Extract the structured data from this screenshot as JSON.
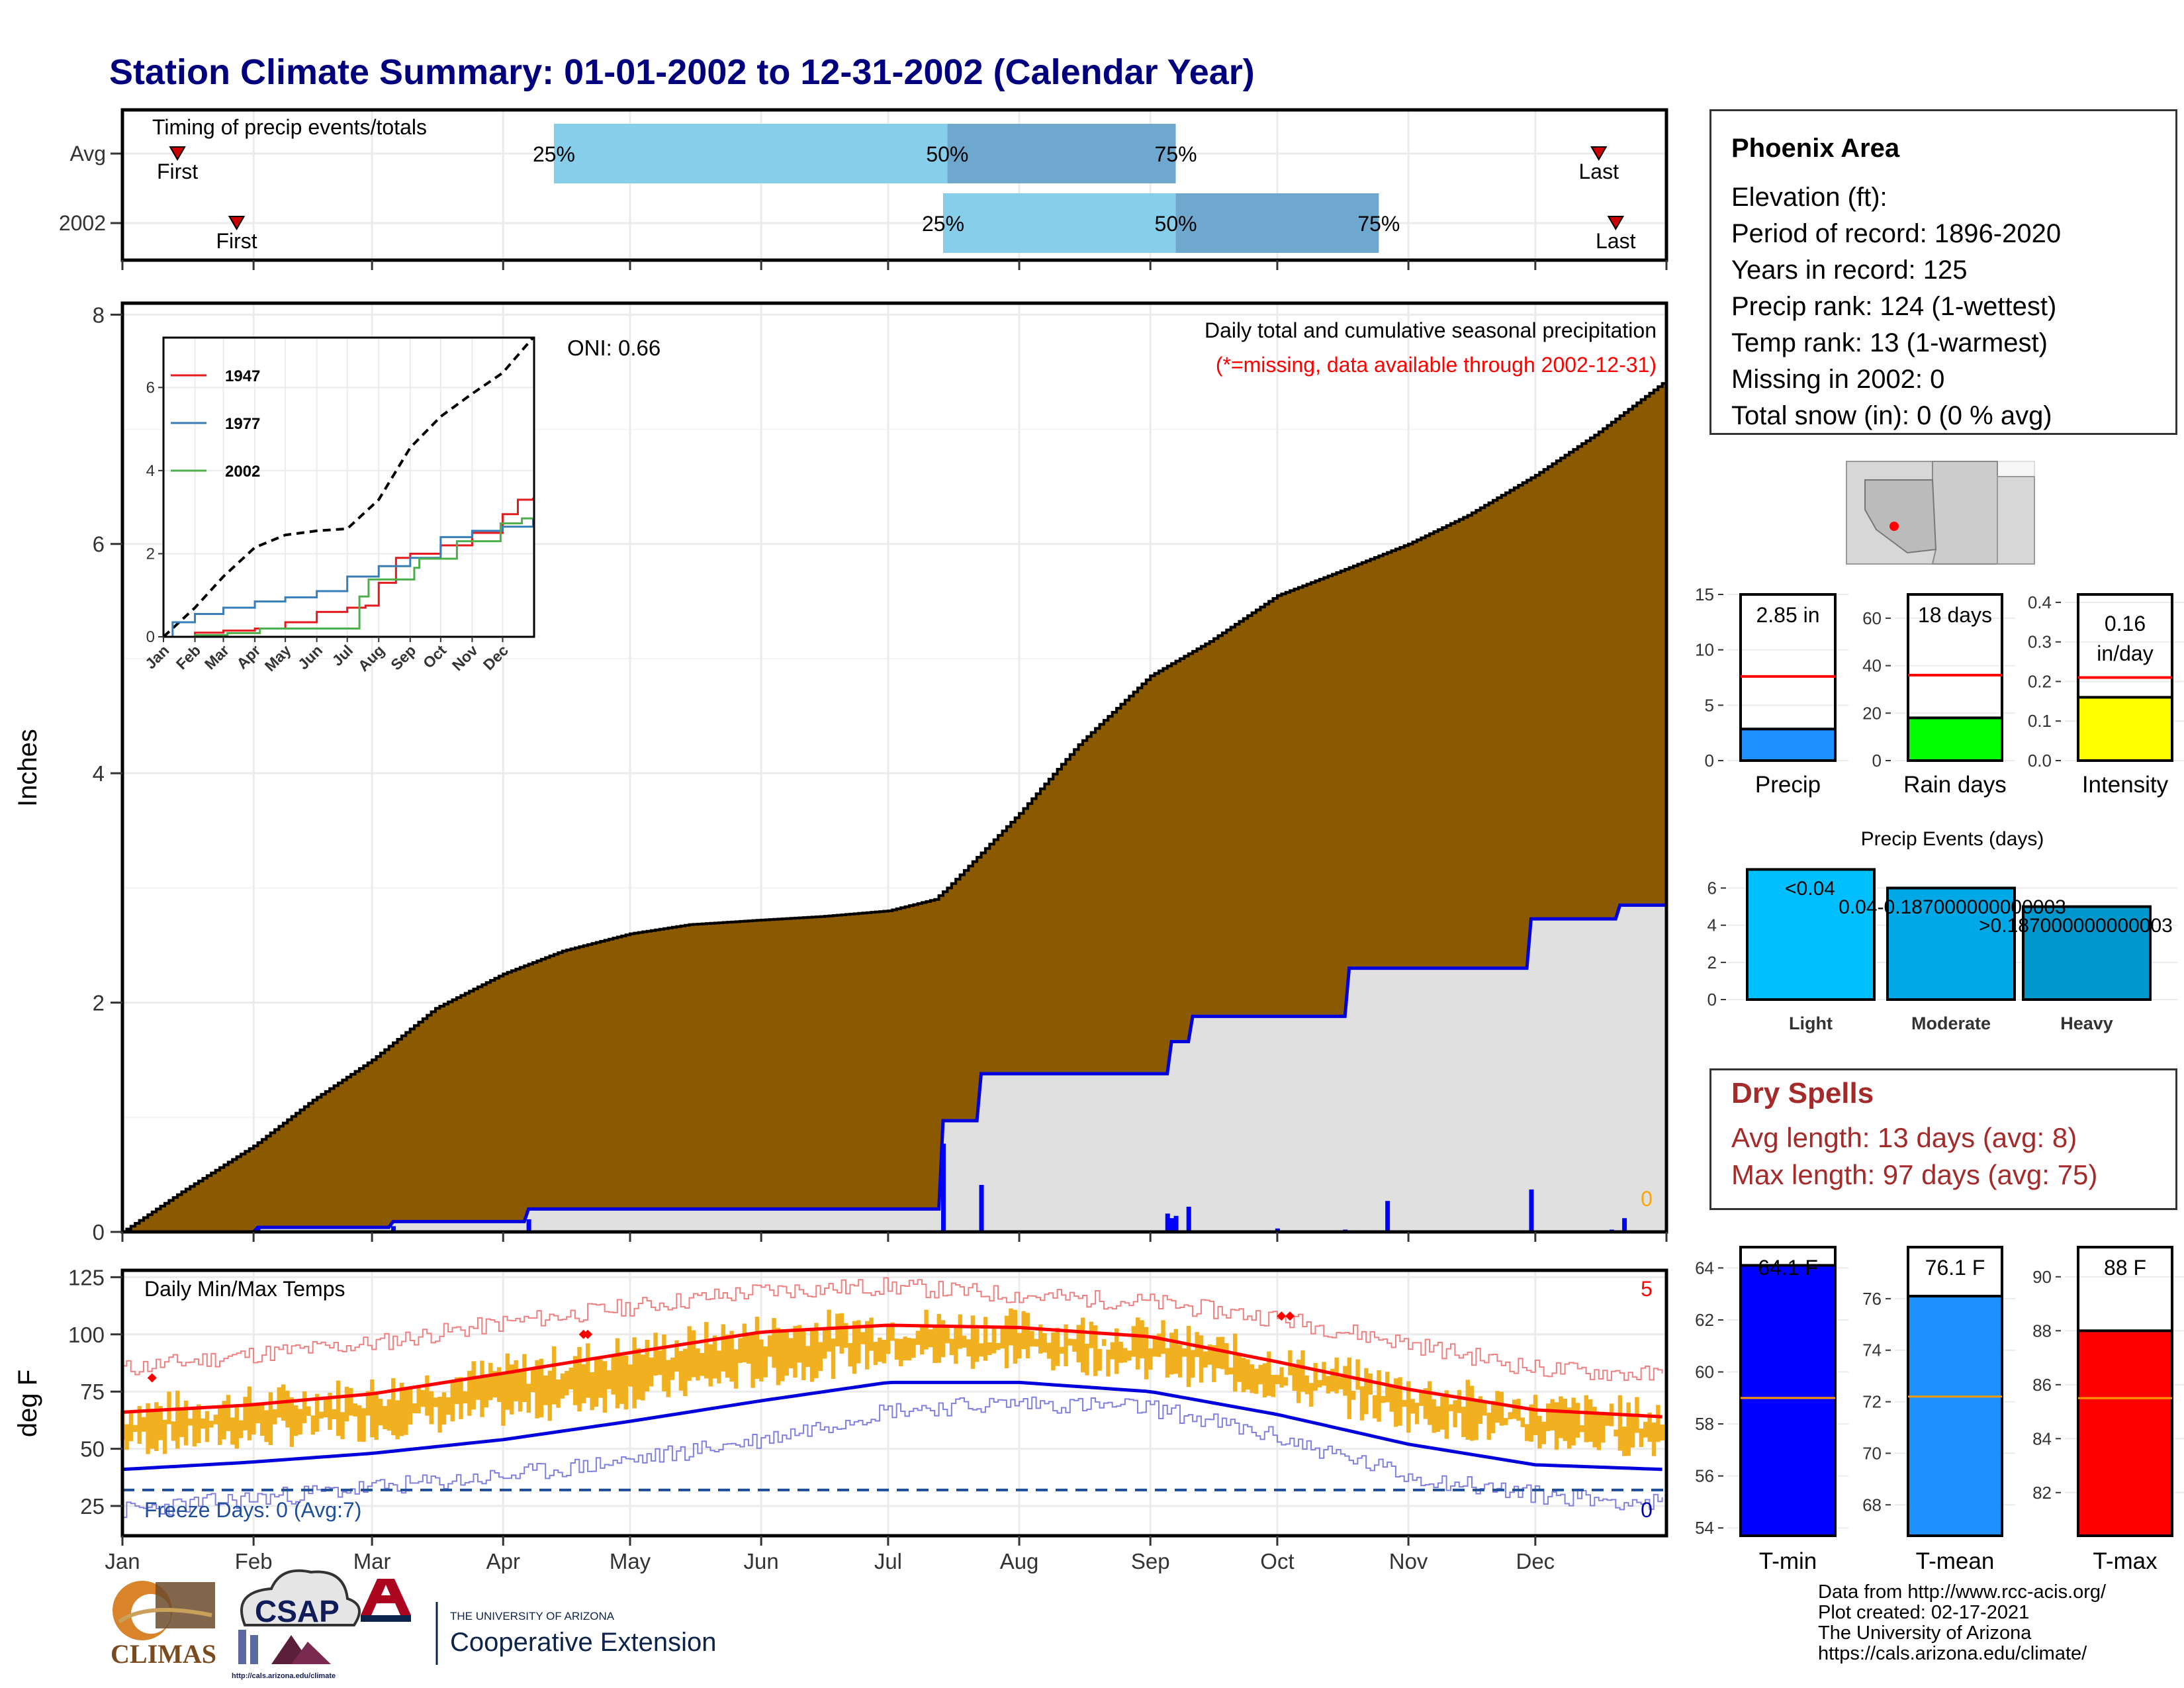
{
  "title": "Station Climate Summary: 01-01-2002 to 12-31-2002 (Calendar Year)",
  "timing": {
    "label": "Timing of precip events/totals",
    "rows": [
      {
        "name": "Avg",
        "first_day": 14,
        "last_day": 350,
        "q25": 103,
        "q50": 196,
        "q75": 250,
        "first_label": "First",
        "last_label": "Last",
        "q25_label": "25%",
        "q50_label": "50%",
        "q75_label": "75%"
      },
      {
        "name": "2002",
        "first_day": 28,
        "last_day": 354,
        "q25": 195,
        "q50": 250,
        "q75": 298,
        "first_label": "First",
        "last_label": "Last",
        "q25_label": "25%",
        "q50_label": "50%",
        "q75_label": "75%"
      }
    ]
  },
  "main_panel": {
    "ylabel": "Inches",
    "y_ticks": [
      "0",
      "2",
      "4",
      "6",
      "8"
    ],
    "note1": "Daily total and cumulative seasonal precipitation",
    "note2": "(*=missing, data available through 2002-12-31)",
    "oni": "ONI: 0.66",
    "missing_count": "0",
    "colors": {
      "avg_fill": "#8b5a00",
      "obs_fill": "#e0e0e0",
      "obs_line": "#0000dd"
    }
  },
  "inset": {
    "y_ticks": [
      "0",
      "2",
      "4",
      "6"
    ],
    "x_ticks": [
      "Jan",
      "Feb",
      "Mar",
      "Apr",
      "May",
      "Jun",
      "Jul",
      "Aug",
      "Sep",
      "Oct",
      "Nov",
      "Dec"
    ],
    "legend": [
      {
        "name": "1947",
        "color": "#e41a1c"
      },
      {
        "name": "1977",
        "color": "#377eb8"
      },
      {
        "name": "2002",
        "color": "#4daf4a"
      }
    ]
  },
  "temp_panel": {
    "ylabel": "deg F",
    "label": "Daily Min/Max Temps",
    "y_ticks": [
      "25",
      "50",
      "75",
      "100",
      "125"
    ],
    "freeze_text": "Freeze Days: 0 (Avg:7)",
    "freeze_count": "0",
    "record_count": "5",
    "months": [
      "Jan",
      "Feb",
      "Mar",
      "Apr",
      "May",
      "Jun",
      "Jul",
      "Aug",
      "Sep",
      "Oct",
      "Nov",
      "Dec"
    ]
  },
  "station": {
    "name": "Phoenix Area",
    "lines": [
      "Elevation (ft):",
      "Period of record: 1896-2020",
      "Years in record: 125",
      "Precip rank: 124 (1-wettest)",
      "Temp rank: 13 (1-warmest)",
      "Missing in 2002: 0",
      "Total snow (in): 0 (0 % avg)"
    ]
  },
  "summary_bars": [
    {
      "name": "Precip",
      "value": 2.85,
      "avg": 7.6,
      "ymax": 15,
      "label_line1": "2.85 in",
      "label_line2": "",
      "ticks": [
        "0",
        "5",
        "10",
        "15"
      ],
      "color": "#1e90ff"
    },
    {
      "name": "Rain days",
      "value": 18,
      "avg": 36,
      "ymax": 70,
      "label_line1": "18 days",
      "label_line2": "",
      "ticks": [
        "0",
        "20",
        "40",
        "60"
      ],
      "color": "#00ff00"
    },
    {
      "name": "Intensity",
      "value": 0.16,
      "avg": 0.21,
      "ymax": 0.42,
      "label_line1": "0.16",
      "label_line2": "in/day",
      "ticks": [
        "0.0",
        "0.1",
        "0.2",
        "0.3",
        "0.4"
      ],
      "color": "#ffff00"
    }
  ],
  "precip_events": {
    "title": "Precip Events (days)",
    "y_ticks": [
      "0",
      "2",
      "4",
      "6"
    ],
    "bars": [
      {
        "name": "Light",
        "value": 7,
        "label": "<0.04",
        "color": "#00bfff"
      },
      {
        "name": "Moderate",
        "value": 6,
        "label": "0.04-0.187000000000003",
        "color": "#00a8e6"
      },
      {
        "name": "Heavy",
        "value": 5,
        "label": ">0.187000000000003",
        "color": "#0097cc"
      }
    ]
  },
  "dry_spells": {
    "title": "Dry Spells",
    "avg_line": "Avg length: 13 days (avg: 8)",
    "max_line": "Max length: 97 days (avg: 75)"
  },
  "temp_bars": [
    {
      "name": "T-min",
      "value": 64.1,
      "avg": 59.0,
      "ymin": 53.7,
      "ymax": 64.8,
      "label": "64.1 F",
      "ticks": [
        "54",
        "56",
        "58",
        "60",
        "62",
        "64"
      ],
      "color": "#0000ff"
    },
    {
      "name": "T-mean",
      "value": 76.1,
      "avg": 72.2,
      "ymin": 66.8,
      "ymax": 78.0,
      "label": "76.1 F",
      "ticks": [
        "68",
        "70",
        "72",
        "74",
        "76"
      ],
      "color": "#1e90ff"
    },
    {
      "name": "T-max",
      "value": 88,
      "avg": 85.5,
      "ymin": 80.4,
      "ymax": 91.1,
      "label": "88 F",
      "ticks": [
        "82",
        "84",
        "86",
        "88",
        "90"
      ],
      "color": "#ff0000"
    }
  ],
  "credits": [
    "Data from http://www.rcc-acis.org/",
    "Plot created: 02-17-2021",
    "The University of Arizona",
    "https://cals.arizona.edu/climate/"
  ],
  "logos": {
    "climas": "CLIMAS",
    "csap": "CSAP",
    "csap_url": "http://cals.arizona.edu/climate",
    "ua_small": "THE UNIVERSITY OF ARIZONA",
    "ua_ext": "Cooperative Extension"
  },
  "chart_data": [
    {
      "type": "area",
      "title": "Daily total and cumulative seasonal precipitation",
      "ylabel": "Inches",
      "ylim": [
        0,
        8.1
      ],
      "x_unit": "day of year",
      "avg_cumulative": {
        "x": [
          1,
          15,
          32,
          46,
          60,
          75,
          91,
          105,
          121,
          135,
          152,
          166,
          182,
          193,
          196,
          213,
          227,
          244,
          258,
          274,
          288,
          305,
          319,
          335,
          349,
          365
        ],
        "y": [
          0,
          0.35,
          0.75,
          1.15,
          1.5,
          1.95,
          2.25,
          2.45,
          2.6,
          2.68,
          2.72,
          2.75,
          2.8,
          2.9,
          3.0,
          3.65,
          4.25,
          4.85,
          5.15,
          5.55,
          5.75,
          6.0,
          6.25,
          6.6,
          6.95,
          7.4
        ]
      },
      "obs_cumulative": {
        "x": [
          1,
          32,
          33,
          64,
          65,
          96,
          97,
          194,
          195,
          203,
          204,
          248,
          249,
          253,
          254,
          290,
          291,
          333,
          334,
          354,
          355,
          365
        ],
        "y": [
          0,
          0,
          0.04,
          0.04,
          0.09,
          0.09,
          0.2,
          0.2,
          0.97,
          0.97,
          1.38,
          1.38,
          1.66,
          1.66,
          1.88,
          1.88,
          2.3,
          2.3,
          2.73,
          2.73,
          2.85,
          2.85
        ]
      },
      "daily_precip": {
        "x": [
          33,
          65,
          97,
          195,
          204,
          248,
          249,
          250,
          253,
          274,
          290,
          300,
          334,
          353,
          356
        ],
        "y": [
          0.04,
          0.05,
          0.11,
          0.77,
          0.41,
          0.16,
          0.12,
          0.14,
          0.22,
          0.03,
          0.02,
          0.27,
          0.37,
          0.02,
          0.12
        ]
      }
    },
    {
      "type": "line",
      "title": "",
      "ylim": [
        0,
        7.2
      ],
      "x_unit": "day of year",
      "series": [
        {
          "name": "",
          "x": [
            1,
            32,
            60,
            91,
            121,
            152,
            182,
            213,
            244,
            274,
            305,
            335,
            365
          ],
          "y": [
            0,
            0.7,
            1.45,
            2.15,
            2.45,
            2.55,
            2.6,
            3.3,
            4.55,
            5.3,
            5.85,
            6.35,
            7.2
          ]
        },
        {
          "name": "1947",
          "x": [
            1,
            32,
            60,
            91,
            121,
            152,
            182,
            200,
            213,
            230,
            244,
            274,
            305,
            335,
            350,
            365
          ],
          "y": [
            0,
            0.1,
            0.15,
            0.2,
            0.35,
            0.6,
            0.7,
            0.75,
            1.3,
            1.9,
            2.0,
            2.2,
            2.5,
            2.95,
            3.3,
            3.35
          ]
        },
        {
          "name": "1977",
          "x": [
            1,
            10,
            32,
            60,
            91,
            121,
            152,
            182,
            213,
            244,
            274,
            305,
            335,
            365
          ],
          "y": [
            0,
            0.35,
            0.55,
            0.7,
            0.85,
            0.95,
            1.1,
            1.45,
            1.7,
            1.9,
            2.4,
            2.55,
            2.65,
            2.85
          ]
        },
        {
          "name": "2002",
          "x": [
            1,
            32,
            64,
            96,
            194,
            203,
            248,
            253,
            290,
            333,
            354,
            365
          ],
          "y": [
            0,
            0.04,
            0.09,
            0.2,
            0.97,
            1.38,
            1.66,
            1.88,
            2.3,
            2.73,
            2.85,
            2.85
          ]
        }
      ]
    },
    {
      "type": "line",
      "title": "Daily Min/Max Temps",
      "ylabel": "deg F",
      "ylim": [
        12,
        128
      ],
      "freeze_line": 32,
      "x_unit": "day of year",
      "series": [
        {
          "name": "",
          "x": [
            1,
            30,
            60,
            91,
            121,
            152,
            182,
            213,
            244,
            274,
            305,
            335,
            365
          ],
          "y": [
            66,
            69,
            74,
            83,
            92,
            101,
            104,
            103,
            99,
            88,
            76,
            67,
            64
          ]
        },
        {
          "name": "",
          "x": [
            1,
            30,
            60,
            91,
            121,
            152,
            182,
            213,
            244,
            274,
            305,
            335,
            365
          ],
          "y": [
            41,
            44,
            48,
            54,
            62,
            71,
            79,
            79,
            75,
            65,
            52,
            43,
            41
          ]
        },
        {
          "name": "",
          "x": [
            1,
            30,
            60,
            91,
            121,
            152,
            182,
            213,
            244,
            274,
            305,
            335,
            365
          ],
          "y": [
            85,
            91,
            96,
            105,
            112,
            119,
            121,
            117,
            114,
            107,
            96,
            85,
            82
          ]
        },
        {
          "name": "",
          "x": [
            1,
            30,
            60,
            91,
            121,
            152,
            182,
            213,
            244,
            274,
            305,
            335,
            365
          ],
          "y": [
            23,
            28,
            33,
            38,
            45,
            54,
            67,
            70,
            68,
            55,
            38,
            30,
            26
          ]
        }
      ],
      "records": {
        "x": [
          8,
          110,
          111,
          275,
          277
        ],
        "y": [
          81,
          100,
          100,
          108,
          108
        ]
      }
    },
    {
      "type": "bar",
      "title": "Precip Events (days)",
      "categories": [
        "Light",
        "Moderate",
        "Heavy"
      ],
      "values": [
        7,
        6,
        5
      ],
      "ylim": [
        0,
        7
      ]
    },
    {
      "type": "bar",
      "categories": [
        "Precip",
        "Rain days",
        "Intensity",
        "T-min",
        "T-mean",
        "T-max"
      ],
      "values": [
        2.85,
        18,
        0.16,
        64.1,
        76.1,
        88
      ],
      "averages": [
        7.6,
        36,
        0.21,
        59.0,
        72.2,
        85.5
      ]
    }
  ]
}
